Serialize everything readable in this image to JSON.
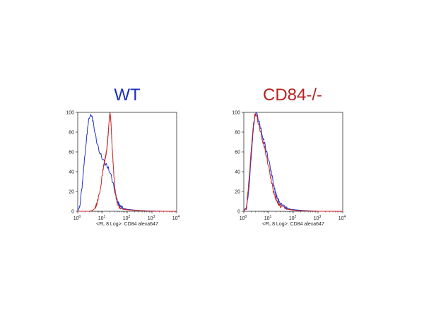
{
  "chart_data": [
    {
      "type": "line",
      "title": "WT",
      "title_color": "#1c2fb8",
      "xlabel": "<FL 8 Log>: CD84 alexa647",
      "ylabel": "",
      "xscale": "log",
      "xlim": [
        1,
        10000
      ],
      "ylim": [
        0,
        100
      ],
      "yticks": [
        0,
        20,
        40,
        60,
        80,
        100
      ],
      "xticks": [
        {
          "base": "10",
          "exp": "0",
          "value": 1
        },
        {
          "base": "10",
          "exp": "1",
          "value": 10
        },
        {
          "base": "10",
          "exp": "2",
          "value": 100
        },
        {
          "base": "10",
          "exp": "3",
          "value": 1000
        },
        {
          "base": "10",
          "exp": "4",
          "value": 10000
        }
      ],
      "grid": false,
      "legend": "none",
      "series": [
        {
          "color": "#2233cc",
          "x": [
            1,
            1.2,
            1.5,
            1.8,
            2.2,
            2.6,
            3.0,
            3.4,
            3.8,
            4.2,
            4.8,
            5.5,
            6.3,
            7.2,
            8.2,
            9.4,
            10.7,
            12.2,
            14,
            16,
            18.5,
            21,
            24,
            27.5,
            31.5,
            36,
            42,
            50,
            60,
            75,
            100,
            150,
            250,
            500,
            1000,
            3000,
            10000
          ],
          "y": [
            0,
            5,
            25,
            48,
            70,
            88,
            96,
            99,
            95,
            90,
            82,
            74,
            67,
            62,
            58,
            55,
            52,
            49,
            47,
            45,
            42,
            38,
            33,
            27,
            20,
            14,
            9,
            6,
            4,
            3,
            2,
            1.5,
            1,
            0.5,
            0.3,
            0,
            0
          ]
        },
        {
          "color": "#cc2222",
          "x": [
            1,
            1.5,
            2,
            3,
            4,
            5,
            6,
            7,
            8,
            9,
            10,
            11,
            12,
            13,
            14,
            15,
            16,
            17,
            18,
            19,
            20,
            21,
            22,
            23,
            24,
            26,
            28,
            30,
            33,
            36,
            40,
            45,
            55,
            70,
            100,
            200,
            500,
            1000,
            10000
          ],
          "y": [
            0,
            0,
            0,
            0,
            1,
            3,
            8,
            15,
            22,
            30,
            38,
            45,
            50,
            54,
            58,
            63,
            70,
            78,
            87,
            94,
            99,
            96,
            90,
            80,
            70,
            55,
            42,
            30,
            20,
            13,
            8,
            5,
            3,
            2,
            1.5,
            1,
            0.5,
            0,
            0
          ]
        }
      ]
    },
    {
      "type": "line",
      "title": "CD84-/-",
      "title_color": "#b82222",
      "xlabel": "<FL 8 Log>: CD84 alexa647",
      "ylabel": "",
      "xscale": "log",
      "xlim": [
        1,
        10000
      ],
      "ylim": [
        0,
        100
      ],
      "yticks": [
        0,
        20,
        40,
        60,
        80,
        100
      ],
      "xticks": [
        {
          "base": "10",
          "exp": "0",
          "value": 1
        },
        {
          "base": "10",
          "exp": "1",
          "value": 10
        },
        {
          "base": "10",
          "exp": "2",
          "value": 100
        },
        {
          "base": "10",
          "exp": "3",
          "value": 1000
        },
        {
          "base": "10",
          "exp": "4",
          "value": 10000
        }
      ],
      "grid": false,
      "legend": "none",
      "series": [
        {
          "color": "#2233cc",
          "x": [
            1,
            1.3,
            1.6,
            2.0,
            2.4,
            2.8,
            3.1,
            3.5,
            4.0,
            4.6,
            5.3,
            6.0,
            7.0,
            8.0,
            9.2,
            10.5,
            12,
            14,
            16,
            19,
            23,
            28,
            35,
            45,
            60,
            80,
            120,
            200,
            400,
            1000,
            10000
          ],
          "y": [
            0,
            4,
            22,
            55,
            82,
            96,
            99,
            97,
            92,
            86,
            80,
            74,
            68,
            62,
            56,
            50,
            43,
            35,
            27,
            19,
            13,
            9,
            6,
            4,
            3,
            2,
            1.5,
            1,
            0.5,
            0,
            0
          ]
        },
        {
          "color": "#cc2222",
          "x": [
            1,
            1.3,
            1.6,
            2.0,
            2.4,
            2.8,
            3.1,
            3.5,
            4.0,
            4.6,
            5.3,
            6.0,
            7.0,
            8.0,
            9.2,
            10.5,
            12,
            14,
            16,
            19,
            23,
            28,
            35,
            45,
            60,
            80,
            120,
            200,
            400,
            1000,
            10000
          ],
          "y": [
            0,
            6,
            30,
            62,
            86,
            97,
            98,
            94,
            88,
            82,
            76,
            70,
            64,
            57,
            50,
            43,
            35,
            27,
            20,
            14,
            9,
            6,
            4,
            3,
            2,
            1.5,
            1,
            0.5,
            0.3,
            0,
            0
          ]
        }
      ]
    }
  ]
}
